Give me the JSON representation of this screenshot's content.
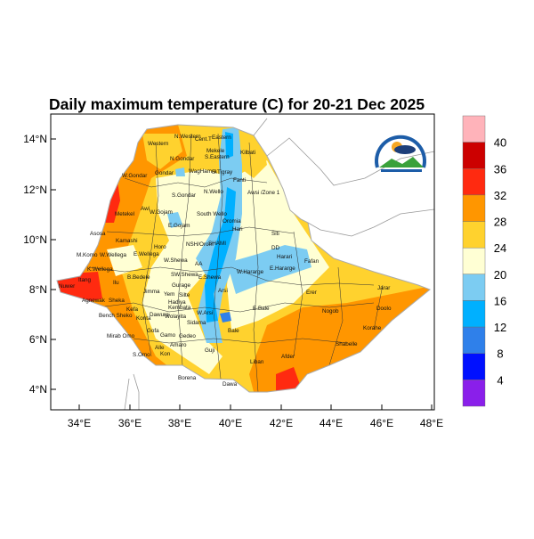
{
  "title": "Daily maximum temperature (C) for 20-21 Dec 2025",
  "axes": {
    "x_ticks": [
      "34°E",
      "36°E",
      "38°E",
      "40°E",
      "42°E",
      "44°E",
      "46°E",
      "48°E"
    ],
    "y_ticks": [
      "14°N",
      "12°N",
      "10°N",
      "8°N",
      "6°N",
      "4°N"
    ]
  },
  "colorbar": {
    "labels": [
      "40",
      "36",
      "32",
      "28",
      "24",
      "20",
      "16",
      "12",
      "8",
      "4"
    ],
    "colors": [
      "#FFB3BA",
      "#CC0000",
      "#FF2A10",
      "#FF9600",
      "#FFD22E",
      "#FFFFD4",
      "#7CCCF2",
      "#00B0FF",
      "#2F80EA",
      "#0010FF",
      "#8A1FEA"
    ]
  },
  "logo": {
    "name": "Ethiopian Meteorology Institute logo"
  },
  "map": {
    "zones": [
      "N.Western",
      "Western",
      "Cent.T",
      "Eastern",
      "Mekele",
      "S.Eastern",
      "Kilbati",
      "N.Gondar",
      "Gondar",
      "W.Gondar",
      "WagHamra",
      "S.Tigray",
      "Fanti",
      "Awsi /Zone 1",
      "N.Wello",
      "S.Gondar",
      "Metekel",
      "W.Gojam",
      "Awi",
      "South Wello",
      "Oromia",
      "E.Gojam",
      "Hari",
      "Asosa",
      "Kamashi",
      "Horo",
      "NSH/Orom",
      "SHAMI",
      "Siti",
      "DD",
      "Harari",
      "Fafan",
      "E.Hararge",
      "W.Hararge",
      "M.Komo",
      "W.Wellega",
      "E.Wellega",
      "W.Shewa",
      "AA",
      "K.Wellega",
      "B.Bedele",
      "Ilu",
      "SW.Shewa",
      "E.Shewa",
      "Gurage",
      "Jimma",
      "Arsi",
      "Itang",
      "Nuwer",
      "Agnewak",
      "Sheka",
      "Kefa",
      "Yem",
      "Silte",
      "Hadiya",
      "Kembata",
      "W.Arsi",
      "E.Bale",
      "Bench Sheko",
      "Konta",
      "Dawuro",
      "Wolayita",
      "Sidama",
      "Bale",
      "Gofa",
      "Mirab Omo",
      "Gamo",
      "Gedeo",
      "Amaro",
      "Guji",
      "Alle",
      "S.Omo",
      "Kon",
      "Liban",
      "Borena",
      "Dawa",
      "Erer",
      "Jarar",
      "Nogob",
      "Doolo",
      "Korahe",
      "Shabelle",
      "Afder"
    ]
  }
}
